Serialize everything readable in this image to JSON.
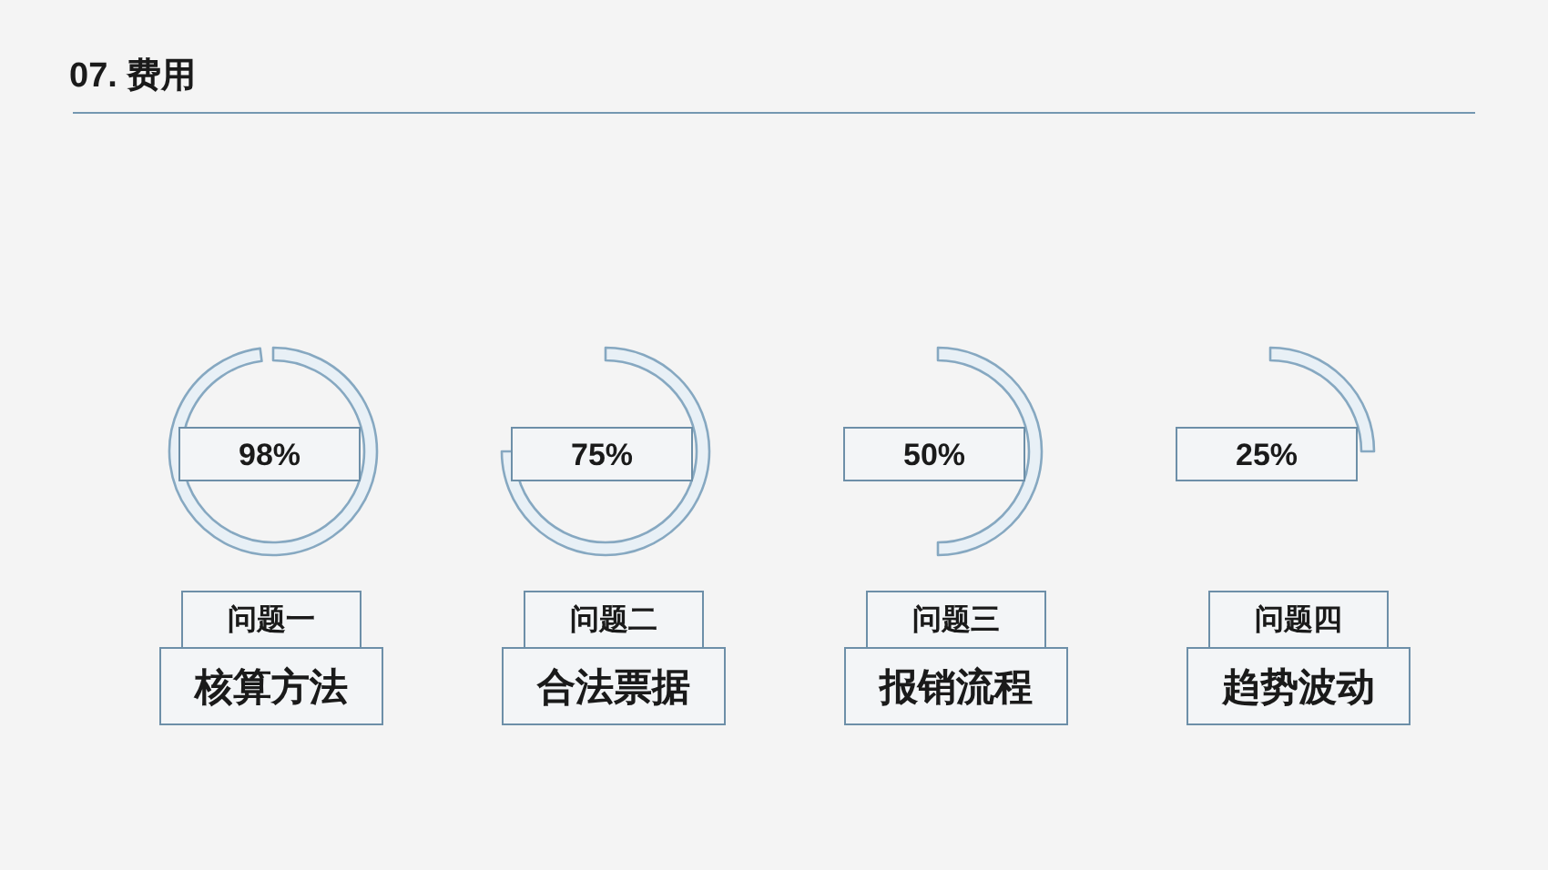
{
  "chart_data": [
    {
      "type": "other",
      "title": "07. 费用"
    },
    {
      "type": "other",
      "title": "核算方法",
      "subtitle": "问题一",
      "values": [
        98
      ],
      "value_labels": [
        "98%"
      ],
      "colors": [
        "#e8f0f6"
      ]
    },
    {
      "type": "other",
      "title": "合法票据",
      "subtitle": "问题二",
      "values": [
        75
      ],
      "value_labels": [
        "75%"
      ],
      "colors": [
        "#e8f0f6"
      ]
    },
    {
      "type": "other",
      "title": "报销流程",
      "subtitle": "问题三",
      "values": [
        50
      ],
      "value_labels": [
        "50%"
      ],
      "colors": [
        "#e8f0f6"
      ]
    },
    {
      "type": "other",
      "title": "趋势波动",
      "subtitle": "问题四",
      "values": [
        25
      ],
      "value_labels": [
        "25%"
      ],
      "colors": [
        "#e8f0f6"
      ]
    }
  ]
}
